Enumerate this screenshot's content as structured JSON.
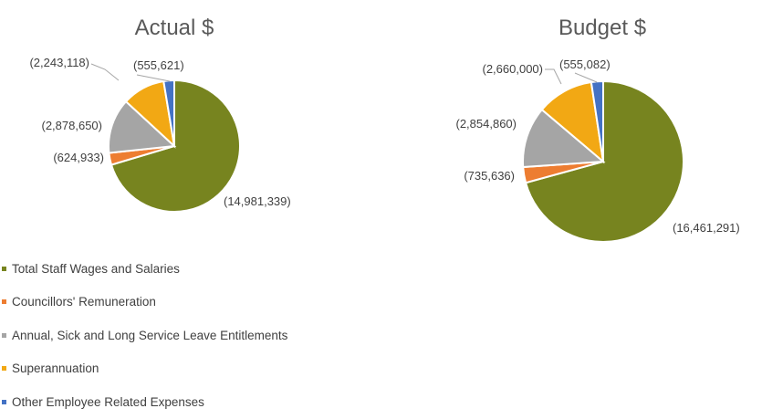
{
  "chart_data": [
    {
      "type": "pie",
      "title": "Actual $",
      "categories": [
        "Total Staff Wages and Salaries",
        "Councillors' Remuneration",
        "Annual, Sick and Long Service Leave Entitlements",
        "Superannuation",
        "Other Employee Related Expenses"
      ],
      "values": [
        14981339,
        624933,
        2878650,
        2243118,
        555621
      ],
      "labels": [
        "(14,981,339)",
        "(624,933)",
        "(2,878,650)",
        "(2,243,118)",
        "(555,621)"
      ]
    },
    {
      "type": "pie",
      "title": "Budget $",
      "categories": [
        "Total Staff Wages and Salaries",
        "Councillors' Remuneration",
        "Annual, Sick and Long Service Leave Entitlements",
        "Superannuation",
        "Other Employee Related Expenses"
      ],
      "values": [
        16461291,
        735636,
        2854860,
        2660000,
        555082
      ],
      "labels": [
        "(16,461,291)",
        "(735,636)",
        "(2,854,860)",
        "(2,660,000)",
        "(555,082)"
      ]
    }
  ],
  "colors": [
    "#77841f",
    "#ed7d31",
    "#a5a5a5",
    "#f2a814",
    "#4472c4"
  ],
  "legend": {
    "position": "bottom-left",
    "items": [
      "Total Staff Wages and Salaries",
      "Councillors' Remuneration",
      "Annual, Sick and Long Service Leave Entitlements",
      "Superannuation",
      "Other Employee Related Expenses"
    ]
  }
}
